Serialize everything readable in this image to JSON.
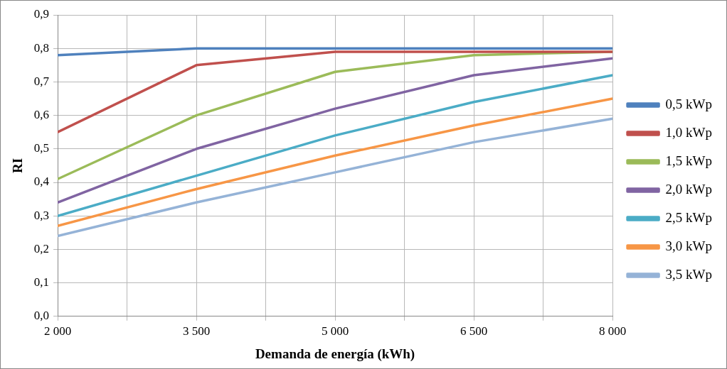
{
  "chart_data": {
    "type": "line",
    "xlabel": "Demanda de energía (kWh)",
    "ylabel": "RI",
    "x": [
      2000,
      3500,
      5000,
      6500,
      8000
    ],
    "xlim": [
      2000,
      8000
    ],
    "xticks": [
      {
        "value": 2000,
        "label": "2 000"
      },
      {
        "value": 2750,
        "label": null
      },
      {
        "value": 3500,
        "label": "3 500"
      },
      {
        "value": 4250,
        "label": null
      },
      {
        "value": 5000,
        "label": "5 000"
      },
      {
        "value": 5750,
        "label": null
      },
      {
        "value": 6500,
        "label": "6 500"
      },
      {
        "value": 7250,
        "label": null
      },
      {
        "value": 8000,
        "label": "8 000"
      }
    ],
    "ylim": [
      0,
      0.9
    ],
    "yticks": [
      {
        "value": 0,
        "label": "0,0"
      },
      {
        "value": 0.1,
        "label": "0,1"
      },
      {
        "value": 0.2,
        "label": "0,2"
      },
      {
        "value": 0.3,
        "label": "0,3"
      },
      {
        "value": 0.4,
        "label": "0,4"
      },
      {
        "value": 0.5,
        "label": "0,5"
      },
      {
        "value": 0.6,
        "label": "0,6"
      },
      {
        "value": 0.7,
        "label": "0,7"
      },
      {
        "value": 0.8,
        "label": "0,8"
      },
      {
        "value": 0.9,
        "label": "0,9"
      }
    ],
    "series": [
      {
        "name": "0,5 kWp",
        "color": "#4f81bd",
        "values": [
          0.78,
          0.8,
          0.8,
          0.8,
          0.8
        ]
      },
      {
        "name": "1,0 kWp",
        "color": "#c0504d",
        "values": [
          0.55,
          0.75,
          0.79,
          0.79,
          0.79
        ]
      },
      {
        "name": "1,5 kWp",
        "color": "#9bbb59",
        "values": [
          0.41,
          0.6,
          0.73,
          0.78,
          0.79
        ]
      },
      {
        "name": "2,0 kWp",
        "color": "#8064a2",
        "values": [
          0.34,
          0.5,
          0.62,
          0.72,
          0.77
        ]
      },
      {
        "name": "2,5 kWp",
        "color": "#4bacc6",
        "values": [
          0.3,
          0.42,
          0.54,
          0.64,
          0.72
        ]
      },
      {
        "name": "3,0 kWp",
        "color": "#f79646",
        "values": [
          0.27,
          0.38,
          0.48,
          0.57,
          0.65
        ]
      },
      {
        "name": "3,5 kWp",
        "color": "#95b3d7",
        "values": [
          0.24,
          0.34,
          0.43,
          0.52,
          0.59
        ]
      }
    ],
    "grid": true,
    "legend": "right",
    "marker": "none",
    "line_style": "solid"
  }
}
